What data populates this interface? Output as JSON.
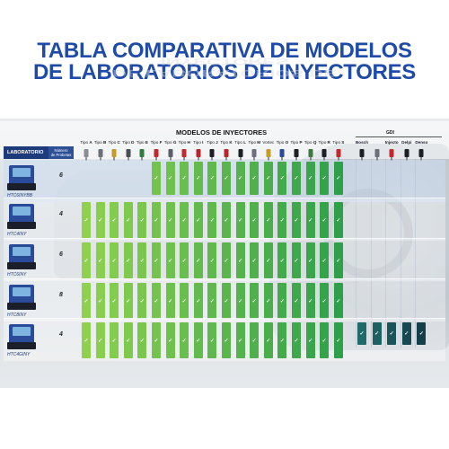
{
  "title": {
    "line1": "TABLA COMPARATIVA DE MODELOS",
    "line2": "DE LABORATORIOS DE INYECTORES"
  },
  "table": {
    "models_title": "MODELOS DE INYECTORES",
    "gdi_title": "GDI",
    "lab_header": "LABORATORIO",
    "probe_header": [
      "Número",
      "de Probetas"
    ],
    "columns": [
      {
        "prefix": "Tipo",
        "letter": "A",
        "color": "#8a8f96"
      },
      {
        "prefix": "Tipo",
        "letter": "B",
        "color": "#6b7078"
      },
      {
        "prefix": "Tipo",
        "letter": "C",
        "color": "#c79a2a"
      },
      {
        "prefix": "Tipo",
        "letter": "D",
        "color": "#4a4f57"
      },
      {
        "prefix": "Tipo",
        "letter": "E",
        "color": "#2f7d3a"
      },
      {
        "prefix": "Tipo",
        "letter": "F",
        "color": "#c2292e"
      },
      {
        "prefix": "Tipo",
        "letter": "G",
        "color": "#5a5f66"
      },
      {
        "prefix": "Tipo",
        "letter": "H",
        "color": "#c2292e"
      },
      {
        "prefix": "Tipo",
        "letter": "I",
        "color": "#b8262b"
      },
      {
        "prefix": "Tipo",
        "letter": "J",
        "color": "#1d1f24"
      },
      {
        "prefix": "Tipo",
        "letter": "K",
        "color": "#b8262b"
      },
      {
        "prefix": "Tipo",
        "letter": "L",
        "color": "#1d1f24"
      },
      {
        "prefix": "Tipo",
        "letter": "M",
        "color": "#6b7078"
      },
      {
        "prefix": "Vortec",
        "letter": "",
        "color": "#c79a2a"
      },
      {
        "prefix": "Tipo",
        "letter": "O",
        "color": "#2a4b9a"
      },
      {
        "prefix": "Tipo",
        "letter": "P",
        "color": "#1d1f24"
      },
      {
        "prefix": "Tipo",
        "letter": "Q",
        "color": "#3b7a3f"
      },
      {
        "prefix": "Tipo",
        "letter": "R",
        "color": "#1d1f24"
      },
      {
        "prefix": "Tipo",
        "letter": "S",
        "color": "#c2292e"
      }
    ],
    "gdi_columns": [
      {
        "label": "Bosch",
        "color": "#1d1f24"
      },
      {
        "label": "",
        "color": "#6b7078"
      },
      {
        "label": "Injecto",
        "color": "#c2292e"
      },
      {
        "label": "Delpi",
        "color": "#1d1f24"
      },
      {
        "label": "Denso",
        "color": "#1d1f24"
      }
    ],
    "check_mark": "✓",
    "rows": [
      {
        "name": "HTC6INYBB",
        "probes": "6",
        "selected": true,
        "checks": [
          false,
          false,
          false,
          false,
          false,
          true,
          true,
          true,
          true,
          true,
          true,
          true,
          true,
          true,
          true,
          true,
          true,
          true,
          true
        ],
        "gdi": [
          false,
          false,
          false,
          false,
          false
        ]
      },
      {
        "name": "HTC4INY",
        "probes": "4",
        "selected": false,
        "checks": [
          true,
          true,
          true,
          true,
          true,
          true,
          true,
          true,
          true,
          true,
          true,
          true,
          true,
          true,
          true,
          true,
          true,
          true,
          true
        ],
        "gdi": [
          false,
          false,
          false,
          false,
          false
        ]
      },
      {
        "name": "HTC6INY",
        "probes": "6",
        "selected": false,
        "checks": [
          true,
          true,
          true,
          true,
          true,
          true,
          true,
          true,
          true,
          true,
          true,
          true,
          true,
          true,
          true,
          true,
          true,
          true,
          true
        ],
        "gdi": [
          false,
          false,
          false,
          false,
          false
        ]
      },
      {
        "name": "HTC8INY",
        "probes": "8",
        "selected": false,
        "checks": [
          true,
          true,
          true,
          true,
          true,
          true,
          true,
          true,
          true,
          true,
          true,
          true,
          true,
          true,
          true,
          true,
          true,
          true,
          true
        ],
        "gdi": [
          false,
          false,
          false,
          false,
          false
        ]
      },
      {
        "name": "HTC4GINY",
        "probes": "4",
        "selected": false,
        "checks": [
          true,
          true,
          true,
          true,
          true,
          true,
          true,
          true,
          true,
          true,
          true,
          true,
          true,
          true,
          true,
          true,
          true,
          true,
          true
        ],
        "gdi": [
          true,
          true,
          true,
          true,
          true
        ]
      }
    ],
    "colors": {
      "green_start": "#8fd14f",
      "green_end": "#2fa04a",
      "gdi_start": "#1f6b6a",
      "gdi_end": "#123f4a",
      "brand_blue": "#1e4aa8"
    }
  }
}
